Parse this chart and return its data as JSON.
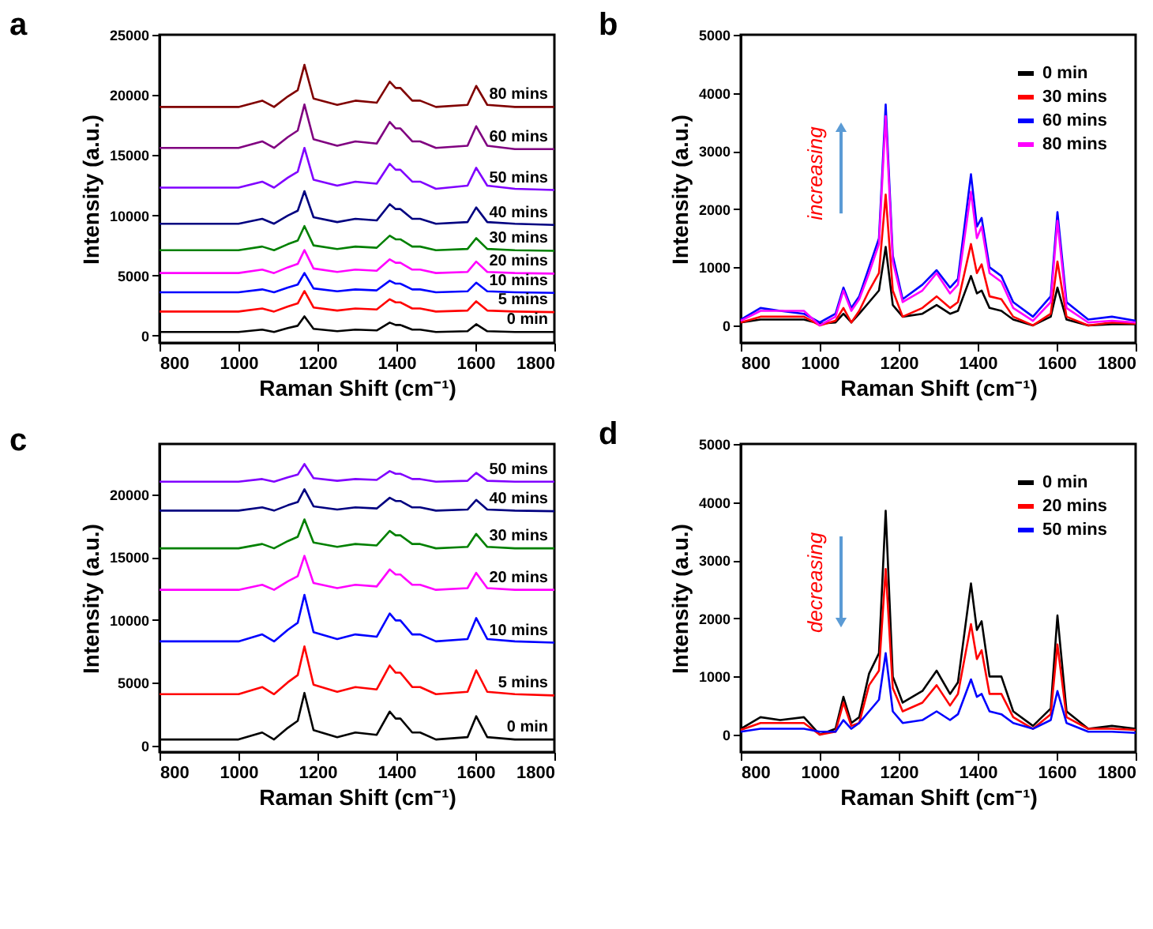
{
  "chart_data": [
    {
      "type": "line",
      "title": "a",
      "xlabel": "Raman Shift (cm⁻¹)",
      "ylabel": "Intensity (a.u.)",
      "xlim": [
        800,
        1800
      ],
      "xticks": [
        800,
        1000,
        1200,
        1400,
        1600,
        1800
      ],
      "ylim": [
        -600,
        25000
      ],
      "yticks": [
        0,
        5000,
        10000,
        15000,
        20000,
        25000
      ],
      "x": [
        800,
        1000,
        1060,
        1090,
        1125,
        1150,
        1167,
        1190,
        1250,
        1296,
        1350,
        1383,
        1398,
        1410,
        1440,
        1460,
        1500,
        1580,
        1602,
        1630,
        1700,
        1800
      ],
      "series": [
        {
          "name": "0 min",
          "color": "#000000",
          "values": [
            300,
            300,
            500,
            300,
            625,
            820,
            1600,
            560,
            365,
            495,
            430,
            1080,
            885,
            885,
            495,
            495,
            300,
            365,
            950,
            365,
            300,
            300
          ]
        },
        {
          "name": "5 mins",
          "color": "#ff0000",
          "values": [
            2000,
            2000,
            2255,
            2000,
            2425,
            2680,
            3700,
            2340,
            2085,
            2255,
            2170,
            3020,
            2765,
            2765,
            2255,
            2255,
            2000,
            2085,
            2850,
            2085,
            2000,
            1950
          ]
        },
        {
          "name": "10 mins",
          "color": "#0000ff",
          "values": [
            3600,
            3600,
            3840,
            3600,
            4000,
            4240,
            5200,
            3920,
            3680,
            3840,
            3760,
            4560,
            4320,
            4320,
            3840,
            3840,
            3600,
            3680,
            4400,
            3680,
            3600,
            3550
          ]
        },
        {
          "name": "20 mins",
          "color": "#ff00ff",
          "values": [
            5200,
            5200,
            5485,
            5200,
            5675,
            5960,
            7100,
            5580,
            5295,
            5485,
            5390,
            6340,
            6055,
            6055,
            5485,
            5485,
            5200,
            5295,
            6150,
            5295,
            5200,
            5150
          ]
        },
        {
          "name": "30 mins",
          "color": "#008000",
          "values": [
            7100,
            7100,
            7400,
            7100,
            7600,
            7900,
            9100,
            7500,
            7200,
            7400,
            7300,
            8300,
            8000,
            8000,
            7400,
            7400,
            7100,
            7200,
            8100,
            7200,
            7100,
            7050
          ]
        },
        {
          "name": "40 mins",
          "color": "#000080",
          "values": [
            9300,
            9300,
            9705,
            9300,
            9975,
            10380,
            12000,
            9840,
            9435,
            9705,
            9570,
            10920,
            10515,
            10515,
            9705,
            9705,
            9300,
            9435,
            10650,
            9435,
            9300,
            9200
          ]
        },
        {
          "name": "50 mins",
          "color": "#8000ff",
          "values": [
            12300,
            12300,
            12795,
            12300,
            13125,
            13620,
            15600,
            12960,
            12465,
            12795,
            12630,
            14280,
            13785,
            13785,
            12795,
            12795,
            12200,
            12465,
            13950,
            12465,
            12200,
            12100
          ]
        },
        {
          "name": "60 mins",
          "color": "#800080",
          "values": [
            15600,
            15600,
            16140,
            15600,
            16500,
            17040,
            19200,
            16320,
            15780,
            16140,
            15960,
            17760,
            17220,
            17220,
            16140,
            16140,
            15600,
            15780,
            17400,
            15780,
            15500,
            15500
          ]
        },
        {
          "name": "80 mins",
          "color": "#800000",
          "values": [
            19000,
            19000,
            19525,
            19000,
            19875,
            20400,
            22500,
            19700,
            19175,
            19525,
            19350,
            21100,
            20575,
            20575,
            19525,
            19525,
            19000,
            19175,
            20750,
            19175,
            19000,
            19000
          ]
        }
      ]
    },
    {
      "type": "line",
      "title": "b",
      "xlabel": "Raman Shift (cm⁻¹)",
      "ylabel": "Intensity (a.u.)",
      "xlim": [
        800,
        1800
      ],
      "xticks": [
        800,
        1000,
        1200,
        1400,
        1600,
        1800
      ],
      "ylim": [
        -300,
        5000
      ],
      "yticks": [
        0,
        1000,
        2000,
        3000,
        4000,
        5000
      ],
      "legend": "top right",
      "annotations": [
        "increasing"
      ],
      "x": [
        800,
        850,
        900,
        960,
        1000,
        1040,
        1060,
        1080,
        1100,
        1125,
        1150,
        1167,
        1185,
        1210,
        1260,
        1296,
        1330,
        1350,
        1383,
        1398,
        1410,
        1430,
        1460,
        1490,
        1540,
        1585,
        1602,
        1625,
        1680,
        1740,
        1800
      ],
      "series": [
        {
          "name": "0 min",
          "color": "#000000",
          "values": [
            50,
            100,
            100,
            100,
            30,
            50,
            200,
            50,
            200,
            400,
            600,
            1350,
            350,
            150,
            200,
            350,
            200,
            250,
            850,
            550,
            600,
            300,
            250,
            100,
            0,
            150,
            650,
            100,
            0,
            20,
            20
          ]
        },
        {
          "name": "30 mins",
          "color": "#ff0000",
          "values": [
            50,
            150,
            150,
            150,
            0,
            80,
            300,
            50,
            250,
            600,
            900,
            2250,
            600,
            150,
            300,
            500,
            300,
            400,
            1400,
            900,
            1050,
            500,
            450,
            150,
            0,
            200,
            1100,
            150,
            0,
            50,
            30
          ]
        },
        {
          "name": "60 mins",
          "color": "#0000ff",
          "values": [
            100,
            300,
            250,
            200,
            50,
            200,
            650,
            300,
            500,
            1000,
            1500,
            3800,
            1200,
            450,
            700,
            950,
            650,
            800,
            2600,
            1700,
            1850,
            1000,
            850,
            400,
            150,
            500,
            1950,
            400,
            100,
            150,
            80
          ]
        },
        {
          "name": "80 mins",
          "color": "#ff00ff",
          "values": [
            80,
            250,
            250,
            250,
            0,
            150,
            600,
            250,
            450,
            900,
            1400,
            3600,
            1100,
            400,
            600,
            900,
            550,
            700,
            2300,
            1500,
            1700,
            900,
            750,
            300,
            80,
            400,
            1800,
            300,
            50,
            80,
            50
          ]
        }
      ]
    },
    {
      "type": "line",
      "title": "c",
      "xlabel": "Raman Shift (cm⁻¹)",
      "ylabel": "Intensity (a.u.)",
      "xlim": [
        800,
        1800
      ],
      "xticks": [
        800,
        1000,
        1200,
        1400,
        1600,
        1800
      ],
      "ylim": [
        -500,
        24000
      ],
      "yticks": [
        0,
        5000,
        10000,
        15000,
        20000
      ],
      "x": [
        800,
        1000,
        1060,
        1090,
        1125,
        1150,
        1167,
        1190,
        1250,
        1296,
        1350,
        1383,
        1398,
        1410,
        1440,
        1460,
        1500,
        1580,
        1602,
        1630,
        1700,
        1800
      ],
      "series": [
        {
          "name": "0 min",
          "color": "#000000",
          "values": [
            500,
            500,
            1055,
            500,
            1425,
            1980,
            4200,
            1240,
            685,
            1055,
            870,
            2720,
            2165,
            2165,
            1055,
            1055,
            500,
            685,
            2350,
            685,
            500,
            500
          ]
        },
        {
          "name": "5 mins",
          "color": "#ff0000",
          "values": [
            4100,
            4100,
            4670,
            4100,
            5050,
            5620,
            7900,
            4860,
            4290,
            4670,
            4480,
            6380,
            5810,
            5810,
            4670,
            4670,
            4100,
            4290,
            6000,
            4290,
            4100,
            4000
          ]
        },
        {
          "name": "10 mins",
          "color": "#0000ff",
          "values": [
            8300,
            8300,
            8855,
            8300,
            9225,
            9780,
            12000,
            9040,
            8485,
            8855,
            8670,
            10520,
            9965,
            9965,
            8855,
            8855,
            8300,
            8485,
            10150,
            8485,
            8300,
            8200
          ]
        },
        {
          "name": "20 mins",
          "color": "#ff00ff",
          "values": [
            12400,
            12400,
            12805,
            12400,
            13075,
            13480,
            15100,
            12940,
            12535,
            12805,
            12670,
            14020,
            13615,
            13615,
            12805,
            12805,
            12400,
            12535,
            13750,
            12535,
            12400,
            12400
          ]
        },
        {
          "name": "30 mins",
          "color": "#008000",
          "values": [
            15700,
            15700,
            16045,
            15700,
            16275,
            16620,
            18000,
            16160,
            15815,
            16045,
            15930,
            17080,
            16735,
            16735,
            16045,
            16045,
            15700,
            15815,
            16850,
            15815,
            15700,
            15700
          ]
        },
        {
          "name": "40 mins",
          "color": "#000080",
          "values": [
            18700,
            18700,
            18955,
            18700,
            19125,
            19380,
            20400,
            19040,
            18785,
            18955,
            18870,
            19720,
            19465,
            19465,
            18955,
            18955,
            18700,
            18785,
            19550,
            18785,
            18700,
            18650
          ]
        },
        {
          "name": "50 mins",
          "color": "#8000ff",
          "values": [
            21000,
            21000,
            21210,
            21000,
            21350,
            21560,
            22400,
            21280,
            21070,
            21210,
            21140,
            21840,
            21630,
            21630,
            21210,
            21210,
            21000,
            21070,
            21700,
            21070,
            21000,
            21000
          ]
        }
      ]
    },
    {
      "type": "line",
      "title": "d",
      "xlabel": "Raman Shift (cm⁻¹)",
      "ylabel": "Intensity (a.u.)",
      "xlim": [
        800,
        1800
      ],
      "xticks": [
        800,
        1000,
        1200,
        1400,
        1600,
        1800
      ],
      "ylim": [
        -300,
        5000
      ],
      "yticks": [
        0,
        1000,
        2000,
        3000,
        4000,
        5000
      ],
      "legend": "top right",
      "annotations": [
        "decreasing"
      ],
      "x": [
        800,
        850,
        900,
        960,
        1000,
        1040,
        1060,
        1080,
        1100,
        1125,
        1150,
        1167,
        1185,
        1210,
        1260,
        1296,
        1330,
        1350,
        1383,
        1398,
        1410,
        1430,
        1460,
        1490,
        1540,
        1585,
        1602,
        1625,
        1680,
        1740,
        1800
      ],
      "series": [
        {
          "name": "0 min",
          "color": "#000000",
          "values": [
            100,
            300,
            250,
            300,
            0,
            100,
            650,
            200,
            300,
            1050,
            1400,
            3850,
            1000,
            550,
            750,
            1100,
            700,
            900,
            2600,
            1800,
            1950,
            1000,
            1000,
            400,
            150,
            450,
            2050,
            400,
            100,
            150,
            100
          ]
        },
        {
          "name": "20 mins",
          "color": "#ff0000",
          "values": [
            80,
            200,
            200,
            200,
            0,
            50,
            550,
            150,
            200,
            850,
            1100,
            2850,
            800,
            400,
            550,
            850,
            500,
            700,
            1900,
            1300,
            1450,
            700,
            700,
            300,
            100,
            350,
            1550,
            300,
            100,
            100,
            80
          ]
        },
        {
          "name": "50 mins",
          "color": "#0000ff",
          "values": [
            50,
            100,
            100,
            100,
            50,
            50,
            250,
            100,
            200,
            400,
            600,
            1400,
            400,
            200,
            250,
            400,
            250,
            350,
            950,
            650,
            700,
            400,
            350,
            200,
            100,
            250,
            750,
            200,
            50,
            50,
            30
          ]
        }
      ]
    }
  ]
}
